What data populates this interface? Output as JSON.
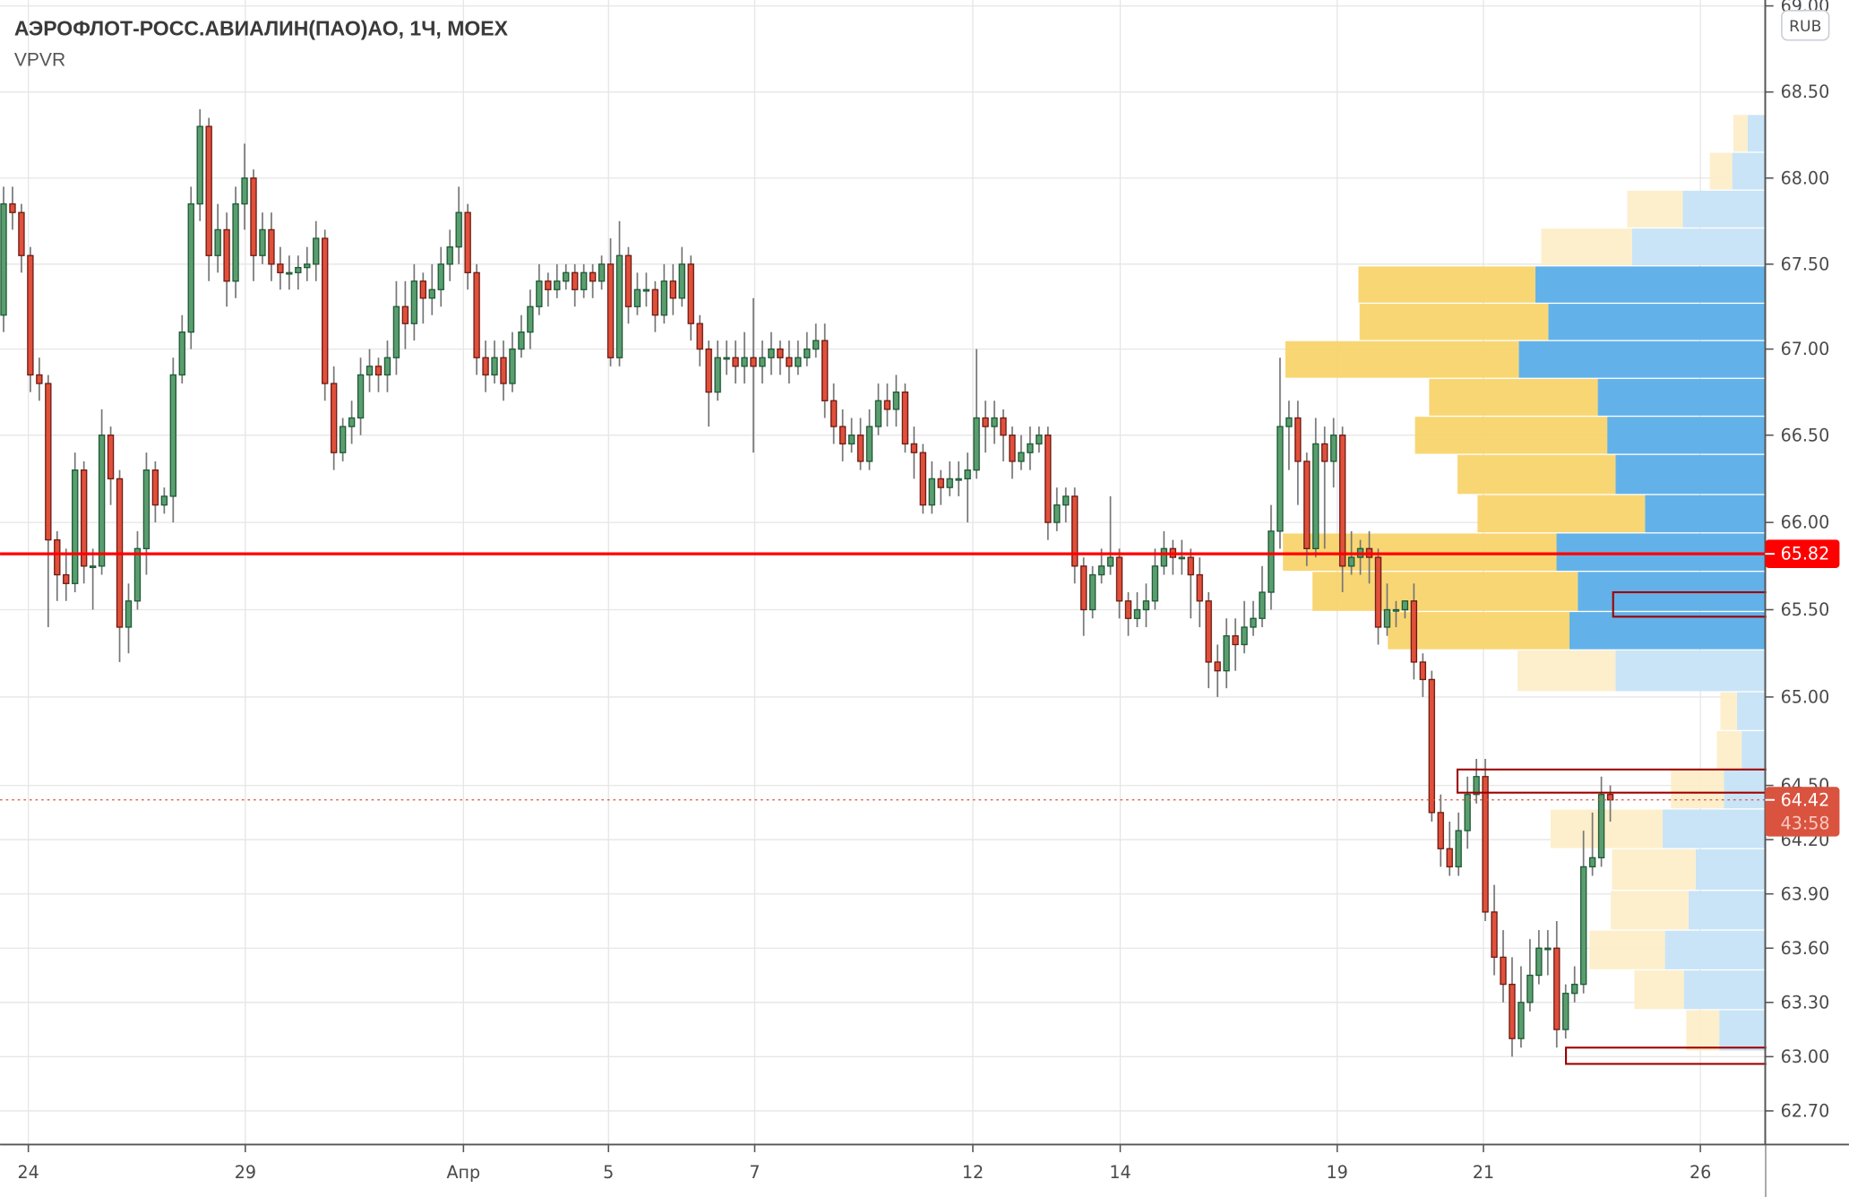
{
  "header": {
    "title": "АЭРОФЛОТ-РОСС.АВИАЛИН(ПАО)АО, 1Ч, MOEX",
    "indicator": "VPVR"
  },
  "currency_button": "RUB",
  "price_axis": {
    "scale": "log",
    "ticks": [
      "69.00",
      "68.50",
      "68.00",
      "67.50",
      "67.00",
      "66.50",
      "66.00",
      "65.50",
      "65.00",
      "64.50",
      "64.20",
      "63.90",
      "63.60",
      "63.30",
      "63.00",
      "62.70"
    ]
  },
  "time_axis": {
    "ticks": [
      "24",
      "29",
      "Апр",
      "5",
      "7",
      "12",
      "14",
      "19",
      "21",
      "26"
    ]
  },
  "horizontal_level": {
    "price": 65.82,
    "label": "65.82",
    "color": "#ff0000"
  },
  "last_price": {
    "price": 64.42,
    "label": "64.42",
    "countdown": "43:58",
    "color": "#d9533f"
  },
  "drawn_rectangles": [
    {
      "top": 65.6,
      "bottom": 65.46,
      "color": "#a00000"
    },
    {
      "top": 64.59,
      "bottom": 64.46,
      "color": "#a00000"
    },
    {
      "top": 63.05,
      "bottom": 62.96,
      "color": "#a00000"
    }
  ],
  "colors": {
    "candle_up": "#5a9e6f",
    "candle_up_border": "#1f5a36",
    "candle_down": "#e0503a",
    "candle_down_border": "#6e1b14",
    "wick": "#777777",
    "vp_up_value_area": "#5aaee8",
    "vp_down_value_area": "#f9d368",
    "vp_up": "#c6e3f7",
    "vp_down": "#fdeec8"
  },
  "volume_profile": {
    "rows": [
      {
        "high": 68.37,
        "low": 68.15,
        "up": 15,
        "down": 12,
        "value_area": false
      },
      {
        "high": 68.15,
        "low": 67.93,
        "up": 28,
        "down": 19,
        "value_area": false
      },
      {
        "high": 67.93,
        "low": 67.71,
        "up": 70,
        "down": 47,
        "value_area": false
      },
      {
        "high": 67.71,
        "low": 67.49,
        "up": 113,
        "down": 77,
        "value_area": false
      },
      {
        "high": 67.49,
        "low": 67.27,
        "up": 195,
        "down": 150,
        "value_area": true
      },
      {
        "high": 67.27,
        "low": 67.05,
        "up": 184,
        "down": 160,
        "value_area": true
      },
      {
        "high": 67.05,
        "low": 66.83,
        "up": 209,
        "down": 198,
        "value_area": true
      },
      {
        "high": 66.83,
        "low": 66.61,
        "up": 142,
        "down": 143,
        "value_area": true
      },
      {
        "high": 66.61,
        "low": 66.39,
        "up": 134,
        "down": 163,
        "value_area": true
      },
      {
        "high": 66.39,
        "low": 66.16,
        "up": 127,
        "down": 134,
        "value_area": true
      },
      {
        "high": 66.16,
        "low": 65.94,
        "up": 102,
        "down": 142,
        "value_area": true
      },
      {
        "high": 65.94,
        "low": 65.72,
        "up": 177,
        "down": 232,
        "value_area": true
      },
      {
        "high": 65.72,
        "low": 65.49,
        "up": 159,
        "down": 225,
        "value_area": true
      },
      {
        "high": 65.49,
        "low": 65.27,
        "up": 166,
        "down": 154,
        "value_area": true
      },
      {
        "high": 65.27,
        "low": 65.03,
        "up": 127,
        "down": 83,
        "value_area": false
      },
      {
        "high": 65.03,
        "low": 64.81,
        "up": 24,
        "down": 14,
        "value_area": false
      },
      {
        "high": 64.81,
        "low": 64.59,
        "up": 20,
        "down": 21,
        "value_area": false
      },
      {
        "high": 64.59,
        "low": 64.37,
        "up": 35,
        "down": 45,
        "value_area": false
      },
      {
        "high": 64.37,
        "low": 64.15,
        "up": 87,
        "down": 95,
        "value_area": false
      },
      {
        "high": 64.15,
        "low": 63.92,
        "up": 59,
        "down": 71,
        "value_area": false
      },
      {
        "high": 63.92,
        "low": 63.7,
        "up": 65,
        "down": 66,
        "value_area": false
      },
      {
        "high": 63.7,
        "low": 63.48,
        "up": 85,
        "down": 64,
        "value_area": false
      },
      {
        "high": 63.48,
        "low": 63.26,
        "up": 69,
        "down": 42,
        "value_area": false
      },
      {
        "high": 63.26,
        "low": 63.03,
        "up": 39,
        "down": 28,
        "value_area": false
      }
    ]
  },
  "chart_data": {
    "type": "candlestick",
    "interval": "1Ч",
    "ylim": [
      62.6,
      69.0
    ],
    "grid": true,
    "candles": {
      "o": [
        67.2,
        67.85,
        67.8,
        67.55,
        66.85,
        66.8,
        65.9,
        65.7,
        65.65,
        66.3,
        65.75,
        65.75,
        66.5,
        66.25,
        65.4,
        65.55,
        65.85,
        66.3,
        66.1,
        66.15,
        66.85,
        67.1,
        67.85,
        68.3,
        67.55,
        67.7,
        67.4,
        67.85,
        68.0,
        67.55,
        67.7,
        67.5,
        67.45,
        67.45,
        67.48,
        67.5,
        67.65,
        66.8,
        66.4,
        66.55,
        66.6,
        66.85,
        66.9,
        66.85,
        66.95,
        67.25,
        67.15,
        67.4,
        67.3,
        67.35,
        67.5,
        67.6,
        67.8,
        67.45,
        66.95,
        66.85,
        66.95,
        66.8,
        67.0,
        67.1,
        67.25,
        67.4,
        67.35,
        67.4,
        67.45,
        67.35,
        67.45,
        67.4,
        67.5,
        66.95,
        67.55,
        67.25,
        67.35,
        67.35,
        67.2,
        67.4,
        67.3,
        67.5,
        67.15,
        67.0,
        66.75,
        66.95,
        66.95,
        66.9,
        66.95,
        66.9,
        66.95,
        67.0,
        66.95,
        66.9,
        66.95,
        67.0,
        67.05,
        66.7,
        66.55,
        66.45,
        66.5,
        66.35,
        66.55,
        66.7,
        66.65,
        66.75,
        66.45,
        66.4,
        66.1,
        66.25,
        66.2,
        66.25,
        66.25,
        66.3,
        66.6,
        66.55,
        66.6,
        66.5,
        66.35,
        66.4,
        66.45,
        66.5,
        66.0,
        66.1,
        66.15,
        65.75,
        65.5,
        65.7,
        65.75,
        65.8,
        65.55,
        65.45,
        65.5,
        65.55,
        65.75,
        65.85,
        65.8,
        65.8,
        65.7,
        65.55,
        65.2,
        65.15,
        65.35,
        65.3,
        65.4,
        65.45,
        65.6,
        65.95,
        66.55,
        66.6,
        66.35,
        65.85,
        66.45,
        66.35,
        66.5,
        65.75,
        65.8,
        65.85,
        65.8,
        65.4,
        65.5,
        65.5,
        65.55,
        65.2,
        65.1,
        64.35,
        64.15,
        64.05,
        64.25,
        64.45,
        64.55,
        63.8,
        63.55,
        63.4,
        63.1,
        63.3,
        63.45,
        63.6,
        63.6,
        63.15,
        63.35,
        63.4,
        64.05,
        64.1,
        64.45
      ],
      "h": [
        67.95,
        67.95,
        67.85,
        67.6,
        66.95,
        66.85,
        65.95,
        65.85,
        66.4,
        66.35,
        65.85,
        66.65,
        66.55,
        66.3,
        65.65,
        65.95,
        66.4,
        66.35,
        66.2,
        66.95,
        67.2,
        67.95,
        68.4,
        68.35,
        67.85,
        67.8,
        67.95,
        68.2,
        68.05,
        67.8,
        67.8,
        67.6,
        67.55,
        67.55,
        67.6,
        67.75,
        67.7,
        66.9,
        66.6,
        66.7,
        66.95,
        67.0,
        66.95,
        67.05,
        67.4,
        67.4,
        67.5,
        67.45,
        67.5,
        67.6,
        67.7,
        67.95,
        67.85,
        67.5,
        67.05,
        67.05,
        67.05,
        67.1,
        67.2,
        67.35,
        67.5,
        67.45,
        67.5,
        67.5,
        67.5,
        67.5,
        67.5,
        67.55,
        67.65,
        67.75,
        67.6,
        67.45,
        67.45,
        67.4,
        67.5,
        67.5,
        67.6,
        67.55,
        67.2,
        67.05,
        67.05,
        67.05,
        67.05,
        67.1,
        67.3,
        67.05,
        67.1,
        67.05,
        67.05,
        67.05,
        67.1,
        67.15,
        67.15,
        66.8,
        66.65,
        66.6,
        66.6,
        66.65,
        66.8,
        66.8,
        66.85,
        66.8,
        66.55,
        66.45,
        66.35,
        66.3,
        66.35,
        66.35,
        66.4,
        67.0,
        66.7,
        66.7,
        66.65,
        66.55,
        66.5,
        66.55,
        66.55,
        66.55,
        66.2,
        66.2,
        66.2,
        65.8,
        65.75,
        65.85,
        66.15,
        65.85,
        65.6,
        65.6,
        65.65,
        65.85,
        65.95,
        65.9,
        65.9,
        65.85,
        65.8,
        65.6,
        65.3,
        65.45,
        65.45,
        65.55,
        65.55,
        65.75,
        66.1,
        66.95,
        66.7,
        66.7,
        66.4,
        66.6,
        66.55,
        66.6,
        66.55,
        65.95,
        65.9,
        65.95,
        65.85,
        65.65,
        65.55,
        65.55,
        65.65,
        65.25,
        65.15,
        64.45,
        64.3,
        64.35,
        64.55,
        64.65,
        64.65,
        63.95,
        63.7,
        63.55,
        63.5,
        63.65,
        63.7,
        63.7,
        63.75,
        63.4,
        63.5,
        64.25,
        64.35,
        64.55,
        64.5
      ],
      "l": [
        67.1,
        67.7,
        67.45,
        66.75,
        66.7,
        65.4,
        65.55,
        65.55,
        65.6,
        65.65,
        65.5,
        65.7,
        66.1,
        65.2,
        65.25,
        65.5,
        65.7,
        66.0,
        66.05,
        66.0,
        66.8,
        67.0,
        67.75,
        67.4,
        67.45,
        67.25,
        67.3,
        67.7,
        67.4,
        67.5,
        67.4,
        67.35,
        67.35,
        67.35,
        67.4,
        67.4,
        66.7,
        66.3,
        66.35,
        66.45,
        66.5,
        66.75,
        66.75,
        66.75,
        66.85,
        67.0,
        67.05,
        67.15,
        67.2,
        67.25,
        67.4,
        67.5,
        67.35,
        66.85,
        66.75,
        66.8,
        66.7,
        66.75,
        66.95,
        67.0,
        67.2,
        67.25,
        67.3,
        67.35,
        67.25,
        67.3,
        67.3,
        67.35,
        66.9,
        66.9,
        67.15,
        67.2,
        67.25,
        67.1,
        67.15,
        67.2,
        67.25,
        67.05,
        66.9,
        66.55,
        66.7,
        66.85,
        66.8,
        66.8,
        66.4,
        66.8,
        66.85,
        66.85,
        66.8,
        66.85,
        66.9,
        66.95,
        66.6,
        66.45,
        66.35,
        66.4,
        66.3,
        66.3,
        66.5,
        66.55,
        66.55,
        66.4,
        66.25,
        66.05,
        66.05,
        66.1,
        66.15,
        66.15,
        66.0,
        66.25,
        66.4,
        66.45,
        66.35,
        66.25,
        66.3,
        66.3,
        66.4,
        65.9,
        65.95,
        66.0,
        65.65,
        65.35,
        65.45,
        65.65,
        65.7,
        65.45,
        65.35,
        65.4,
        65.4,
        65.5,
        65.7,
        65.7,
        65.7,
        65.45,
        65.4,
        65.05,
        65.0,
        65.05,
        65.15,
        65.25,
        65.35,
        65.4,
        65.5,
        65.85,
        66.3,
        66.1,
        65.75,
        65.8,
        65.85,
        66.2,
        65.6,
        65.7,
        65.7,
        65.65,
        65.3,
        65.35,
        65.4,
        65.45,
        65.1,
        65.0,
        64.3,
        64.05,
        64.0,
        64.0,
        64.15,
        64.4,
        63.75,
        63.45,
        63.3,
        63.0,
        63.05,
        63.25,
        63.4,
        63.45,
        63.05,
        63.1,
        63.3,
        63.35,
        64.0,
        64.05,
        64.3
      ],
      "c": [
        67.85,
        67.8,
        67.55,
        66.85,
        66.8,
        65.9,
        65.7,
        65.65,
        66.3,
        65.75,
        65.75,
        66.5,
        66.25,
        65.4,
        65.55,
        65.85,
        66.3,
        66.1,
        66.15,
        66.85,
        67.1,
        67.85,
        68.3,
        67.55,
        67.7,
        67.4,
        67.85,
        68.0,
        67.55,
        67.7,
        67.5,
        67.45,
        67.45,
        67.48,
        67.5,
        67.65,
        66.8,
        66.4,
        66.55,
        66.6,
        66.85,
        66.9,
        66.85,
        66.95,
        67.25,
        67.15,
        67.4,
        67.3,
        67.35,
        67.5,
        67.6,
        67.8,
        67.45,
        66.95,
        66.85,
        66.95,
        66.8,
        67.0,
        67.1,
        67.25,
        67.4,
        67.35,
        67.4,
        67.45,
        67.35,
        67.45,
        67.4,
        67.5,
        66.95,
        67.55,
        67.25,
        67.35,
        67.35,
        67.2,
        67.4,
        67.3,
        67.5,
        67.15,
        67.0,
        66.75,
        66.95,
        66.95,
        66.9,
        66.95,
        66.9,
        66.95,
        67.0,
        66.95,
        66.9,
        66.95,
        67.0,
        67.05,
        66.7,
        66.55,
        66.45,
        66.5,
        66.35,
        66.55,
        66.7,
        66.65,
        66.75,
        66.45,
        66.4,
        66.1,
        66.25,
        66.2,
        66.25,
        66.25,
        66.3,
        66.6,
        66.55,
        66.6,
        66.5,
        66.35,
        66.4,
        66.45,
        66.5,
        66.0,
        66.1,
        66.15,
        65.75,
        65.5,
        65.7,
        65.75,
        65.8,
        65.55,
        65.45,
        65.5,
        65.55,
        65.75,
        65.85,
        65.8,
        65.8,
        65.7,
        65.55,
        65.2,
        65.15,
        65.35,
        65.3,
        65.4,
        65.45,
        65.6,
        65.95,
        66.55,
        66.6,
        66.35,
        65.85,
        66.45,
        66.35,
        66.5,
        65.75,
        65.8,
        65.85,
        65.8,
        65.4,
        65.5,
        65.5,
        65.55,
        65.2,
        65.1,
        64.35,
        64.15,
        64.05,
        64.25,
        64.45,
        64.55,
        63.8,
        63.55,
        63.4,
        63.1,
        63.3,
        63.45,
        63.6,
        63.6,
        63.15,
        63.35,
        63.4,
        64.05,
        64.1,
        64.45,
        64.42
      ]
    }
  }
}
